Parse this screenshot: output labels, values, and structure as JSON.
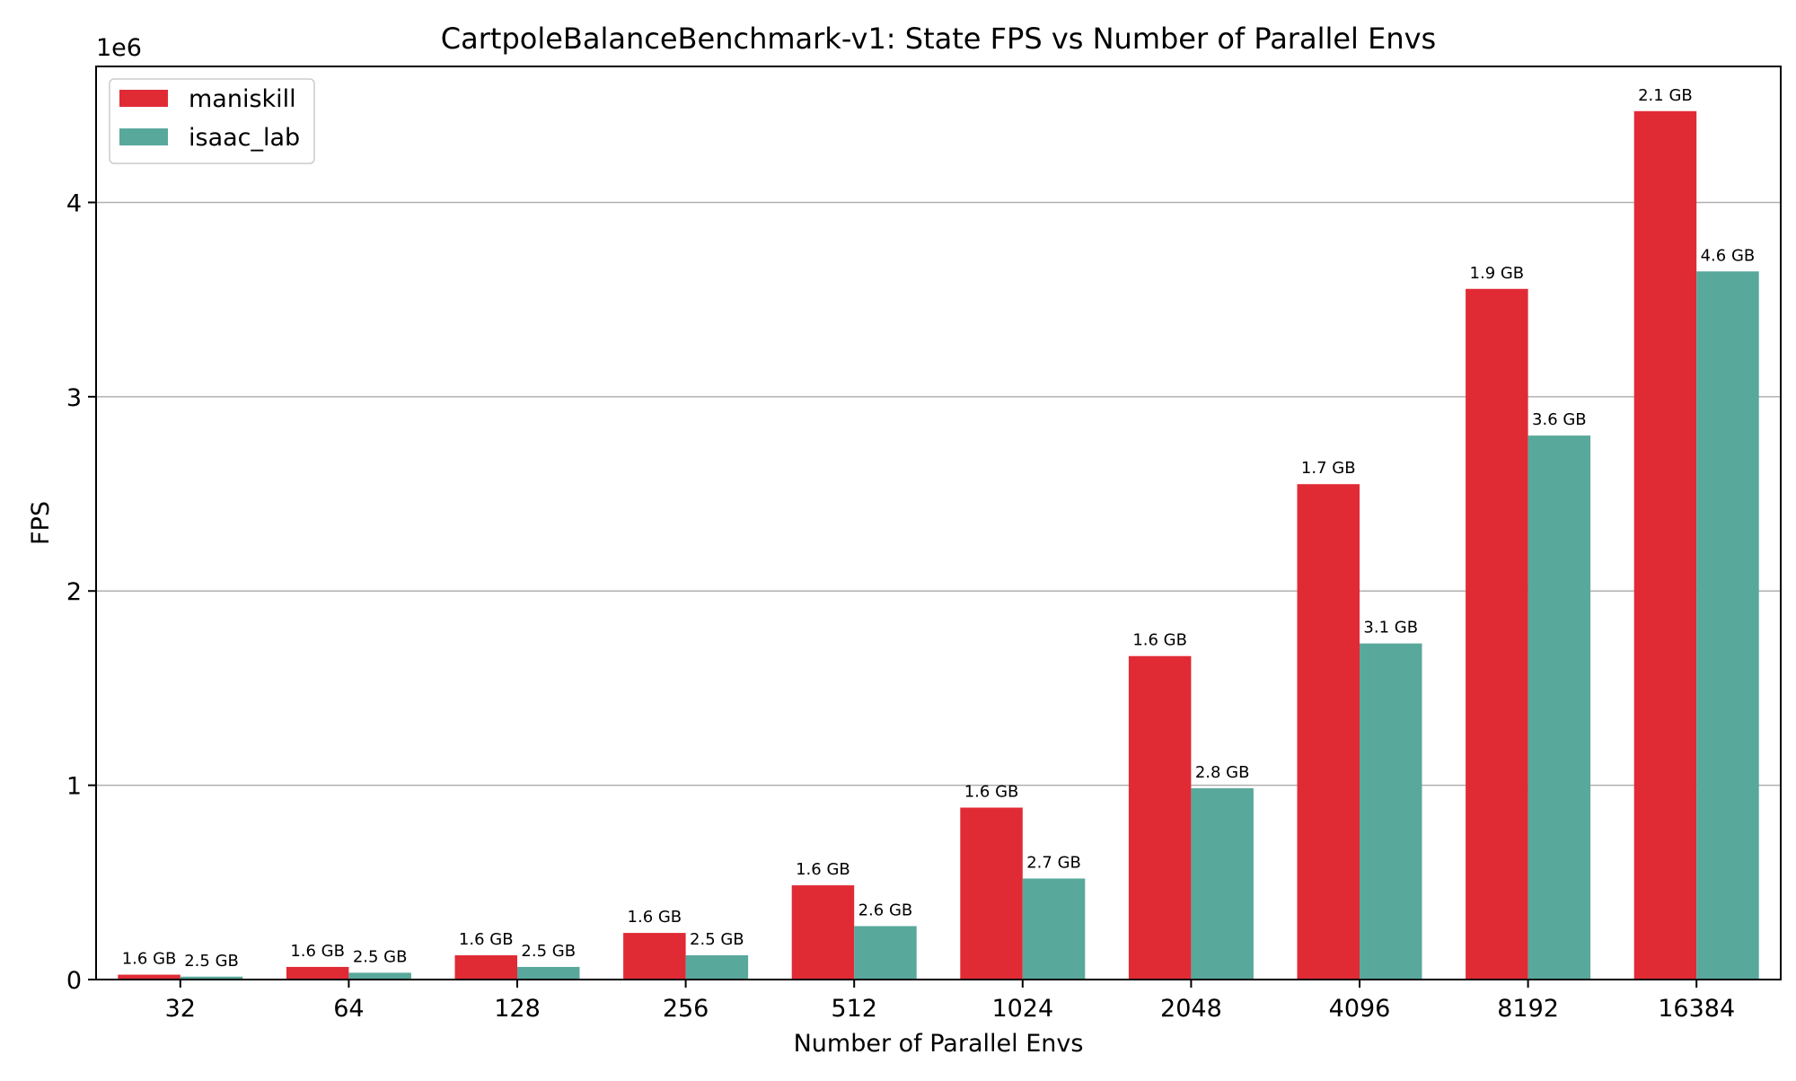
{
  "chart_data": {
    "type": "bar",
    "title": "CartpoleBalanceBenchmark-v1: State FPS vs Number of Parallel Envs",
    "xlabel": "Number of Parallel Envs",
    "ylabel": "FPS",
    "y_exponent_label": "1e6",
    "ylim": [
      0,
      4.7
    ],
    "y_ticks": [
      0,
      1,
      2,
      3,
      4
    ],
    "y_tick_labels": [
      "0",
      "1",
      "2",
      "3",
      "4"
    ],
    "y_unit_multiplier": 1000000,
    "grid": "y",
    "legend_position": "top-left",
    "categories": [
      "32",
      "64",
      "128",
      "256",
      "512",
      "1024",
      "2048",
      "4096",
      "8192",
      "16384"
    ],
    "series": [
      {
        "name": "maniskill",
        "color": "#e02b35",
        "values": [
          0.025,
          0.065,
          0.125,
          0.24,
          0.485,
          0.885,
          1.665,
          2.55,
          3.555,
          4.47
        ],
        "labels": [
          "1.6 GB",
          "1.6 GB",
          "1.6 GB",
          "1.6 GB",
          "1.6 GB",
          "1.6 GB",
          "1.6 GB",
          "1.7 GB",
          "1.9 GB",
          "2.1 GB"
        ]
      },
      {
        "name": "isaac_lab",
        "color": "#59a89c",
        "values": [
          0.015,
          0.035,
          0.065,
          0.125,
          0.275,
          0.52,
          0.985,
          1.73,
          2.8,
          3.645
        ],
        "labels": [
          "2.5 GB",
          "2.5 GB",
          "2.5 GB",
          "2.5 GB",
          "2.6 GB",
          "2.7 GB",
          "2.8 GB",
          "3.1 GB",
          "3.6 GB",
          "4.6 GB"
        ]
      }
    ]
  }
}
